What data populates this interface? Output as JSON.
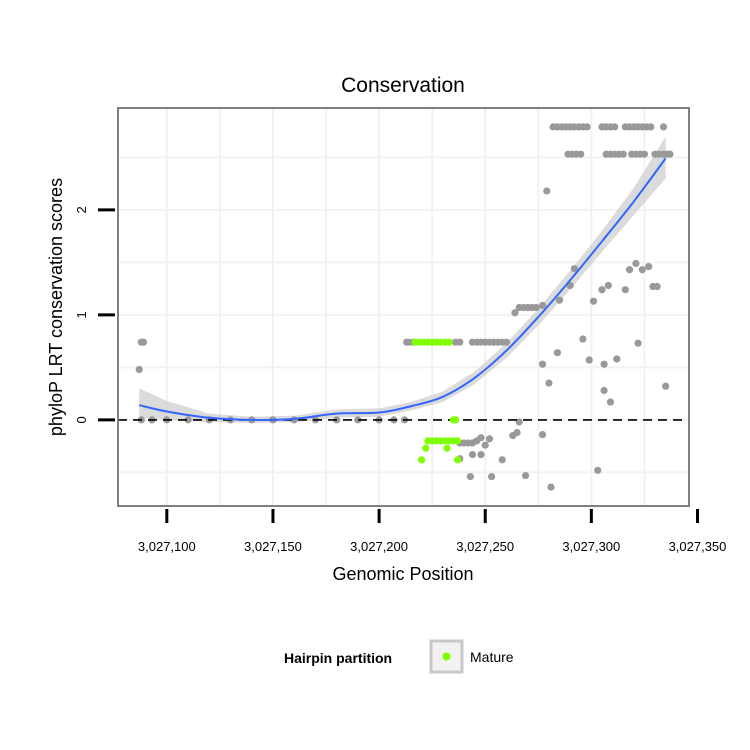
{
  "chart_data": {
    "type": "scatter",
    "title": "Conservation",
    "xlabel": "Genomic Position",
    "ylabel": "phyloP LRT conservation scores",
    "xlim": [
      3027077,
      3027346
    ],
    "ylim": [
      -0.82,
      2.97
    ],
    "x_ticks": [
      {
        "value": 3027100,
        "label": "3,027,100"
      },
      {
        "value": 3027150,
        "label": "3,027,150"
      },
      {
        "value": 3027200,
        "label": "3,027,200"
      },
      {
        "value": 3027250,
        "label": "3,027,250"
      },
      {
        "value": 3027300,
        "label": "3,027,300"
      },
      {
        "value": 3027350,
        "label": "3,027,350"
      }
    ],
    "y_ticks": [
      {
        "value": 0,
        "label": "0"
      },
      {
        "value": 1,
        "label": "1"
      },
      {
        "value": 2,
        "label": "2"
      }
    ],
    "reference_line": {
      "y": 0,
      "style": "dashed",
      "color": "#000000"
    },
    "grid": true,
    "colors": {
      "other_points": "#999999",
      "mature_points": "#7fff00",
      "smooth_line": "#3366ff",
      "confidence_band": "#cccccc",
      "panel_border": "#7f7f7f",
      "gridline": "#f2f2f2"
    },
    "legend": {
      "title": "Hairpin partition",
      "placement": "bottom",
      "entries": [
        {
          "label": "Mature",
          "color": "#7fff00"
        }
      ]
    },
    "series": [
      {
        "name": "Other",
        "points": [
          [
            3027087,
            0.48
          ],
          [
            3027088,
            0.74
          ],
          [
            3027089,
            0.74
          ],
          [
            3027088,
            0
          ],
          [
            3027093,
            0
          ],
          [
            3027100,
            0
          ],
          [
            3027110,
            0
          ],
          [
            3027120,
            0
          ],
          [
            3027130,
            0
          ],
          [
            3027140,
            0
          ],
          [
            3027150,
            0
          ],
          [
            3027160,
            0
          ],
          [
            3027170,
            0
          ],
          [
            3027180,
            0
          ],
          [
            3027190,
            0
          ],
          [
            3027200,
            0
          ],
          [
            3027207,
            0
          ],
          [
            3027212,
            0
          ],
          [
            3027213,
            0.74
          ],
          [
            3027214,
            0.74
          ],
          [
            3027216,
            0.74
          ],
          [
            3027236,
            0.74
          ],
          [
            3027238,
            0.74
          ],
          [
            3027244,
            0.74
          ],
          [
            3027246,
            0.74
          ],
          [
            3027248,
            0.74
          ],
          [
            3027250,
            0.74
          ],
          [
            3027252,
            0.74
          ],
          [
            3027254,
            0.74
          ],
          [
            3027256,
            0.74
          ],
          [
            3027258,
            0.74
          ],
          [
            3027260,
            0.74
          ],
          [
            3027238,
            -0.22
          ],
          [
            3027240,
            -0.22
          ],
          [
            3027242,
            -0.22
          ],
          [
            3027244,
            -0.22
          ],
          [
            3027246,
            -0.2
          ],
          [
            3027248,
            -0.17
          ],
          [
            3027250,
            -0.24
          ],
          [
            3027252,
            -0.18
          ],
          [
            3027244,
            -0.33
          ],
          [
            3027248,
            -0.33
          ],
          [
            3027238,
            -0.37
          ],
          [
            3027243,
            -0.54
          ],
          [
            3027253,
            -0.54
          ],
          [
            3027258,
            -0.38
          ],
          [
            3027263,
            -0.15
          ],
          [
            3027265,
            -0.12
          ],
          [
            3027266,
            -0.02
          ],
          [
            3027269,
            -0.53
          ],
          [
            3027277,
            0.53
          ],
          [
            3027280,
            0.35
          ],
          [
            3027284,
            0.64
          ],
          [
            3027277,
            -0.14
          ],
          [
            3027281,
            -0.64
          ],
          [
            3027264,
            1.02
          ],
          [
            3027266,
            1.07
          ],
          [
            3027268,
            1.07
          ],
          [
            3027270,
            1.07
          ],
          [
            3027272,
            1.07
          ],
          [
            3027274,
            1.07
          ],
          [
            3027277,
            1.09
          ],
          [
            3027279,
            2.18
          ],
          [
            3027285,
            1.14
          ],
          [
            3027290,
            1.28
          ],
          [
            3027292,
            1.44
          ],
          [
            3027296,
            0.77
          ],
          [
            3027299,
            0.57
          ],
          [
            3027301,
            1.13
          ],
          [
            3027303,
            -0.48
          ],
          [
            3027305,
            1.24
          ],
          [
            3027306,
            0.53
          ],
          [
            3027306,
            0.28
          ],
          [
            3027308,
            1.28
          ],
          [
            3027309,
            0.17
          ],
          [
            3027312,
            0.58
          ],
          [
            3027316,
            1.24
          ],
          [
            3027318,
            1.43
          ],
          [
            3027321,
            1.49
          ],
          [
            3027322,
            0.73
          ],
          [
            3027324,
            1.43
          ],
          [
            3027327,
            1.46
          ],
          [
            3027329,
            1.27
          ],
          [
            3027331,
            1.27
          ],
          [
            3027335,
            0.32
          ],
          [
            3027282,
            2.79
          ],
          [
            3027284,
            2.79
          ],
          [
            3027286,
            2.79
          ],
          [
            3027288,
            2.79
          ],
          [
            3027290,
            2.79
          ],
          [
            3027292,
            2.79
          ],
          [
            3027294,
            2.79
          ],
          [
            3027296,
            2.79
          ],
          [
            3027298,
            2.79
          ],
          [
            3027305,
            2.79
          ],
          [
            3027307,
            2.79
          ],
          [
            3027309,
            2.79
          ],
          [
            3027311,
            2.79
          ],
          [
            3027316,
            2.79
          ],
          [
            3027318,
            2.79
          ],
          [
            3027320,
            2.79
          ],
          [
            3027322,
            2.79
          ],
          [
            3027324,
            2.79
          ],
          [
            3027326,
            2.79
          ],
          [
            3027328,
            2.79
          ],
          [
            3027334,
            2.79
          ],
          [
            3027289,
            2.53
          ],
          [
            3027291,
            2.53
          ],
          [
            3027293,
            2.53
          ],
          [
            3027295,
            2.53
          ],
          [
            3027307,
            2.53
          ],
          [
            3027309,
            2.53
          ],
          [
            3027311,
            2.53
          ],
          [
            3027313,
            2.53
          ],
          [
            3027315,
            2.53
          ],
          [
            3027319,
            2.53
          ],
          [
            3027321,
            2.53
          ],
          [
            3027323,
            2.53
          ],
          [
            3027325,
            2.53
          ],
          [
            3027330,
            2.53
          ],
          [
            3027332,
            2.53
          ],
          [
            3027334,
            2.53
          ],
          [
            3027335,
            2.53
          ],
          [
            3027336,
            2.53
          ],
          [
            3027337,
            2.53
          ]
        ]
      },
      {
        "name": "Mature",
        "points": [
          [
            3027217,
            0.74
          ],
          [
            3027219,
            0.74
          ],
          [
            3027221,
            0.74
          ],
          [
            3027223,
            0.74
          ],
          [
            3027225,
            0.74
          ],
          [
            3027227,
            0.74
          ],
          [
            3027229,
            0.74
          ],
          [
            3027231,
            0.74
          ],
          [
            3027233,
            0.74
          ],
          [
            3027235,
            0
          ],
          [
            3027236,
            0
          ],
          [
            3027223,
            -0.2
          ],
          [
            3027225,
            -0.2
          ],
          [
            3027227,
            -0.2
          ],
          [
            3027229,
            -0.2
          ],
          [
            3027231,
            -0.2
          ],
          [
            3027233,
            -0.2
          ],
          [
            3027235,
            -0.2
          ],
          [
            3027237,
            -0.2
          ],
          [
            3027222,
            -0.27
          ],
          [
            3027232,
            -0.27
          ],
          [
            3027220,
            -0.38
          ],
          [
            3027237,
            -0.38
          ]
        ]
      }
    ],
    "smooth": {
      "method": "loess",
      "x": [
        3027087,
        3027100,
        3027120,
        3027140,
        3027160,
        3027180,
        3027200,
        3027215,
        3027230,
        3027245,
        3027260,
        3027275,
        3027290,
        3027305,
        3027320,
        3027335
      ],
      "y": [
        0.14,
        0.08,
        0.02,
        0.0,
        0.01,
        0.06,
        0.07,
        0.13,
        0.22,
        0.4,
        0.66,
        0.98,
        1.33,
        1.7,
        2.08,
        2.49
      ],
      "lower": [
        0.02,
        0.0,
        -0.02,
        -0.03,
        -0.02,
        0.02,
        0.03,
        0.09,
        0.17,
        0.34,
        0.59,
        0.9,
        1.24,
        1.6,
        1.95,
        2.3
      ],
      "upper": [
        0.3,
        0.18,
        0.06,
        0.03,
        0.04,
        0.1,
        0.11,
        0.17,
        0.27,
        0.46,
        0.73,
        1.06,
        1.42,
        1.8,
        2.21,
        2.7
      ]
    }
  }
}
